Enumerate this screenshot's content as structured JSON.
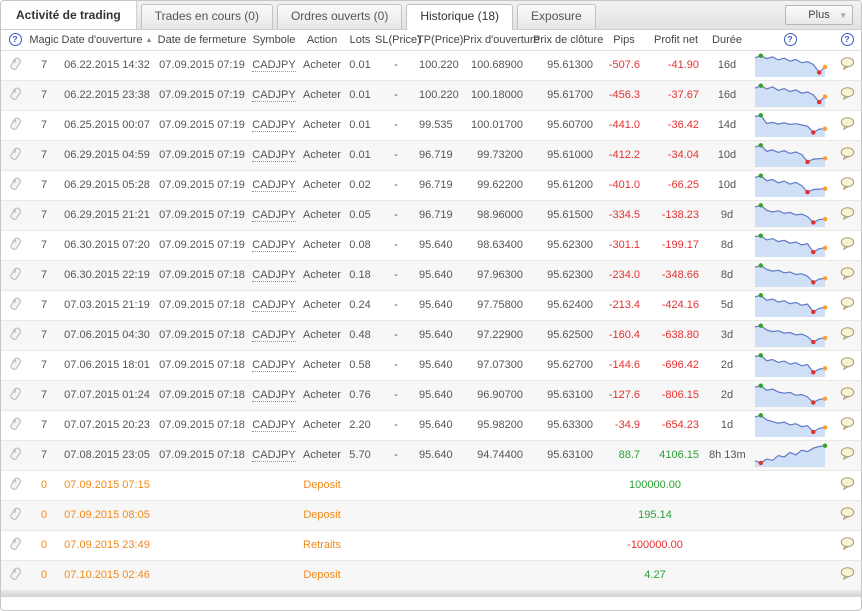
{
  "tabs": {
    "title": "Activité de trading",
    "items": [
      {
        "label": "Trades en cours (0)",
        "active": false
      },
      {
        "label": "Ordres ouverts (0)",
        "active": false
      },
      {
        "label": "Historique (18)",
        "active": true
      },
      {
        "label": "Exposure",
        "active": false
      }
    ],
    "more_label": "Plus"
  },
  "icons": {
    "help": "?",
    "sort_asc": "▲",
    "dropdown": "▼"
  },
  "colors": {
    "negative": "#e53131",
    "positive": "#2aa233",
    "cash_orange": "#ef8a1a",
    "spark_line": "#6079c8",
    "spark_fill": "#cfdff6",
    "marker_start_green": "#33a122",
    "marker_low_red": "#e03030",
    "marker_end_orange": "#ff9d2e"
  },
  "table": {
    "headers": [
      "Magic",
      "Date d'ouverture",
      "Date de fermeture",
      "Symbole",
      "Action",
      "Lots",
      "SL(Price)",
      "TP(Price)",
      "Prix d'ouverture",
      "Prix de clôture",
      "Pips",
      "Profit net",
      "Durée"
    ],
    "sort_column": "Date d'ouverture",
    "sort_direction": "asc",
    "rows": [
      {
        "magic": "7",
        "open_date": "06.22.2015 14:32",
        "close_date": "07.09.2015 07:19",
        "symbol": "CADJPY",
        "action": "Acheter",
        "lots": "0.01",
        "sl": "-",
        "tp": "100.220",
        "open_price": "100.68900",
        "close_price": "95.61300",
        "pips": "-507.6",
        "profit": "-41.90",
        "duration": "16d",
        "spark": {
          "y": [
            18,
            8,
            22,
            14,
            28,
            20,
            34,
            26,
            42,
            36,
            50,
            88,
            62
          ],
          "markers": [
            {
              "i": 1,
              "c": "#33a122"
            },
            {
              "i": 11,
              "c": "#e03030"
            },
            {
              "i": 12,
              "c": "#ff9d2e"
            }
          ]
        }
      },
      {
        "magic": "7",
        "open_date": "06.22.2015 23:38",
        "close_date": "07.09.2015 07:19",
        "symbol": "CADJPY",
        "action": "Acheter",
        "lots": "0.01",
        "sl": "-",
        "tp": "100.220",
        "open_price": "100.18000",
        "close_price": "95.61700",
        "pips": "-456.3",
        "profit": "-37.67",
        "duration": "16d",
        "spark": {
          "y": [
            20,
            8,
            24,
            14,
            30,
            22,
            36,
            28,
            44,
            38,
            52,
            86,
            60
          ],
          "markers": [
            {
              "i": 1,
              "c": "#33a122"
            },
            {
              "i": 11,
              "c": "#e03030"
            },
            {
              "i": 12,
              "c": "#ff9d2e"
            }
          ]
        }
      },
      {
        "magic": "7",
        "open_date": "06.25.2015 00:07",
        "close_date": "07.09.2015 07:19",
        "symbol": "CADJPY",
        "action": "Acheter",
        "lots": "0.01",
        "sl": "-",
        "tp": "99.535",
        "open_price": "100.01700",
        "close_price": "95.60700",
        "pips": "-441.0",
        "profit": "-36.42",
        "duration": "14d",
        "spark": {
          "y": [
            12,
            6,
            45,
            40,
            48,
            42,
            50,
            46,
            52,
            58,
            88,
            72,
            70
          ],
          "markers": [
            {
              "i": 1,
              "c": "#33a122"
            },
            {
              "i": 10,
              "c": "#e03030"
            },
            {
              "i": 12,
              "c": "#ff9d2e"
            }
          ]
        }
      },
      {
        "magic": "7",
        "open_date": "06.29.2015 04:59",
        "close_date": "07.09.2015 07:19",
        "symbol": "CADJPY",
        "action": "Acheter",
        "lots": "0.01",
        "sl": "-",
        "tp": "96.719",
        "open_price": "99.73200",
        "close_price": "95.61000",
        "pips": "-412.2",
        "profit": "-34.04",
        "duration": "10d",
        "spark": {
          "y": [
            14,
            6,
            35,
            28,
            40,
            32,
            45,
            38,
            50,
            85,
            72,
            70,
            68
          ],
          "markers": [
            {
              "i": 1,
              "c": "#33a122"
            },
            {
              "i": 9,
              "c": "#e03030"
            },
            {
              "i": 12,
              "c": "#ff9d2e"
            }
          ]
        }
      },
      {
        "magic": "7",
        "open_date": "06.29.2015 05:28",
        "close_date": "07.09.2015 07:19",
        "symbol": "CADJPY",
        "action": "Acheter",
        "lots": "0.02",
        "sl": "-",
        "tp": "96.719",
        "open_price": "99.62200",
        "close_price": "95.61200",
        "pips": "-401.0",
        "profit": "-66.25",
        "duration": "10d",
        "spark": {
          "y": [
            16,
            8,
            32,
            26,
            42,
            34,
            48,
            40,
            55,
            86,
            74,
            72,
            70
          ],
          "markers": [
            {
              "i": 1,
              "c": "#33a122"
            },
            {
              "i": 9,
              "c": "#e03030"
            },
            {
              "i": 12,
              "c": "#ff9d2e"
            }
          ]
        }
      },
      {
        "magic": "7",
        "open_date": "06.29.2015 21:21",
        "close_date": "07.09.2015 07:19",
        "symbol": "CADJPY",
        "action": "Acheter",
        "lots": "0.05",
        "sl": "-",
        "tp": "96.719",
        "open_price": "98.96000",
        "close_price": "95.61500",
        "pips": "-334.5",
        "profit": "-138.23",
        "duration": "9d",
        "spark": {
          "y": [
            14,
            6,
            30,
            38,
            32,
            45,
            40,
            52,
            48,
            60,
            88,
            74,
            72
          ],
          "markers": [
            {
              "i": 1,
              "c": "#33a122"
            },
            {
              "i": 10,
              "c": "#e03030"
            },
            {
              "i": 12,
              "c": "#ff9d2e"
            }
          ]
        }
      },
      {
        "magic": "7",
        "open_date": "06.30.2015 07:20",
        "close_date": "07.09.2015 07:19",
        "symbol": "CADJPY",
        "action": "Acheter",
        "lots": "0.08",
        "sl": "-",
        "tp": "95.640",
        "open_price": "98.63400",
        "close_price": "95.62300",
        "pips": "-301.1",
        "profit": "-199.17",
        "duration": "8d",
        "spark": {
          "y": [
            12,
            8,
            28,
            22,
            36,
            30,
            44,
            38,
            52,
            46,
            86,
            70,
            66
          ],
          "markers": [
            {
              "i": 1,
              "c": "#33a122"
            },
            {
              "i": 10,
              "c": "#e03030"
            },
            {
              "i": 12,
              "c": "#ff9d2e"
            }
          ]
        }
      },
      {
        "magic": "7",
        "open_date": "06.30.2015 22:19",
        "close_date": "07.09.2015 07:18",
        "symbol": "CADJPY",
        "action": "Acheter",
        "lots": "0.18",
        "sl": "-",
        "tp": "95.640",
        "open_price": "97.96300",
        "close_price": "95.62300",
        "pips": "-234.0",
        "profit": "-348.66",
        "duration": "8d",
        "spark": {
          "y": [
            15,
            7,
            26,
            34,
            30,
            42,
            38,
            50,
            46,
            58,
            87,
            72,
            68
          ],
          "markers": [
            {
              "i": 1,
              "c": "#33a122"
            },
            {
              "i": 10,
              "c": "#e03030"
            },
            {
              "i": 12,
              "c": "#ff9d2e"
            }
          ]
        }
      },
      {
        "magic": "7",
        "open_date": "07.03.2015 21:19",
        "close_date": "07.09.2015 07:18",
        "symbol": "CADJPY",
        "action": "Acheter",
        "lots": "0.24",
        "sl": "-",
        "tp": "95.640",
        "open_price": "97.75800",
        "close_price": "95.62400",
        "pips": "-213.4",
        "profit": "-424.16",
        "duration": "5d",
        "spark": {
          "y": [
            13,
            6,
            30,
            24,
            38,
            32,
            46,
            40,
            54,
            48,
            85,
            68,
            64
          ],
          "markers": [
            {
              "i": 1,
              "c": "#33a122"
            },
            {
              "i": 10,
              "c": "#e03030"
            },
            {
              "i": 12,
              "c": "#ff9d2e"
            }
          ]
        }
      },
      {
        "magic": "7",
        "open_date": "07.06.2015 04:30",
        "close_date": "07.09.2015 07:18",
        "symbol": "CADJPY",
        "action": "Acheter",
        "lots": "0.48",
        "sl": "-",
        "tp": "95.640",
        "open_price": "97.22900",
        "close_price": "95.62500",
        "pips": "-160.4",
        "profit": "-638.80",
        "duration": "3d",
        "spark": {
          "y": [
            14,
            8,
            28,
            36,
            32,
            44,
            40,
            52,
            48,
            60,
            86,
            70,
            66
          ],
          "markers": [
            {
              "i": 1,
              "c": "#33a122"
            },
            {
              "i": 10,
              "c": "#e03030"
            },
            {
              "i": 12,
              "c": "#ff9d2e"
            }
          ]
        }
      },
      {
        "magic": "7",
        "open_date": "07.06.2015 18:01",
        "close_date": "07.09.2015 07:18",
        "symbol": "CADJPY",
        "action": "Acheter",
        "lots": "0.58",
        "sl": "-",
        "tp": "95.640",
        "open_price": "97.07300",
        "close_price": "95.62700",
        "pips": "-144.6",
        "profit": "-696.42",
        "duration": "2d",
        "spark": {
          "y": [
            12,
            6,
            32,
            26,
            40,
            34,
            48,
            42,
            56,
            50,
            87,
            72,
            68
          ],
          "markers": [
            {
              "i": 1,
              "c": "#33a122"
            },
            {
              "i": 10,
              "c": "#e03030"
            },
            {
              "i": 12,
              "c": "#ff9d2e"
            }
          ]
        }
      },
      {
        "magic": "7",
        "open_date": "07.07.2015 01:24",
        "close_date": "07.09.2015 07:18",
        "symbol": "CADJPY",
        "action": "Acheter",
        "lots": "0.76",
        "sl": "-",
        "tp": "95.640",
        "open_price": "96.90700",
        "close_price": "95.63100",
        "pips": "-127.6",
        "profit": "-806.15",
        "duration": "2d",
        "spark": {
          "y": [
            15,
            8,
            30,
            24,
            38,
            44,
            40,
            54,
            50,
            62,
            88,
            74,
            70
          ],
          "markers": [
            {
              "i": 1,
              "c": "#33a122"
            },
            {
              "i": 10,
              "c": "#e03030"
            },
            {
              "i": 12,
              "c": "#ff9d2e"
            }
          ]
        }
      },
      {
        "magic": "7",
        "open_date": "07.07.2015 20:23",
        "close_date": "07.09.2015 07:18",
        "symbol": "CADJPY",
        "action": "Acheter",
        "lots": "2.20",
        "sl": "-",
        "tp": "95.640",
        "open_price": "95.98200",
        "close_price": "95.63300",
        "pips": "-34.9",
        "profit": "-654.23",
        "duration": "1d",
        "spark": {
          "y": [
            14,
            6,
            28,
            36,
            44,
            38,
            52,
            46,
            60,
            55,
            85,
            68,
            64
          ],
          "markers": [
            {
              "i": 1,
              "c": "#33a122"
            },
            {
              "i": 10,
              "c": "#e03030"
            },
            {
              "i": 12,
              "c": "#ff9d2e"
            }
          ]
        }
      },
      {
        "magic": "7",
        "open_date": "07.08.2015 23:05",
        "close_date": "07.09.2015 07:18",
        "symbol": "CADJPY",
        "action": "Acheter",
        "lots": "5.70",
        "sl": "-",
        "tp": "95.640",
        "open_price": "94.74400",
        "close_price": "95.63100",
        "pips": "88.7",
        "profit": "4106.15",
        "duration": "8h 13m",
        "spark": {
          "y": [
            80,
            90,
            72,
            78,
            55,
            62,
            40,
            52,
            30,
            36,
            20,
            12,
            8
          ],
          "markers": [
            {
              "i": 1,
              "c": "#e03030"
            },
            {
              "i": 12,
              "c": "#33a122"
            }
          ]
        }
      }
    ],
    "cash_rows": [
      {
        "magic": "0",
        "date": "07.09.2015 07:15",
        "label": "Deposit",
        "amount": "100000.00"
      },
      {
        "magic": "0",
        "date": "07.09.2015 08:05",
        "label": "Deposit",
        "amount": "195.14"
      },
      {
        "magic": "0",
        "date": "07.09.2015 23:49",
        "label": "Retraits",
        "amount": "-100000.00"
      },
      {
        "magic": "0",
        "date": "07.10.2015 02:46",
        "label": "Deposit",
        "amount": "4.27"
      }
    ]
  }
}
